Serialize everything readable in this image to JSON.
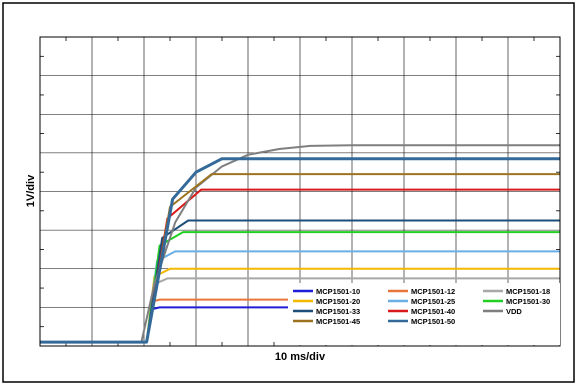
{
  "chart_data": {
    "type": "line",
    "title": "",
    "xlabel": "10 ms/div",
    "ylabel": "1V/div",
    "grid": true,
    "xlim": [
      0,
      10
    ],
    "ylim": [
      0,
      8
    ],
    "legend_placement": "bottom-right",
    "series": [
      {
        "name": "MCP1501-10",
        "color": "#1f1fd6",
        "values_x": [
          0,
          2.05,
          2.15,
          2.3,
          10
        ],
        "values_y": [
          0.1,
          0.1,
          0.95,
          1.0,
          1.0
        ]
      },
      {
        "name": "MCP1501-12",
        "color": "#e8763a",
        "values_x": [
          0,
          2.05,
          2.15,
          2.3,
          10
        ],
        "values_y": [
          0.1,
          0.1,
          1.15,
          1.2,
          1.2
        ]
      },
      {
        "name": "MCP1501-18",
        "color": "#a8a8a8",
        "values_x": [
          0,
          2.05,
          2.2,
          2.45,
          10
        ],
        "values_y": [
          0.1,
          0.1,
          1.6,
          1.75,
          1.75
        ]
      },
      {
        "name": "MCP1501-20",
        "color": "#f5b800",
        "values_x": [
          0,
          2.05,
          2.2,
          2.5,
          10
        ],
        "values_y": [
          0.1,
          0.1,
          1.8,
          2.0,
          2.0
        ]
      },
      {
        "name": "MCP1501-25",
        "color": "#6aaee6",
        "values_x": [
          0,
          2.05,
          2.25,
          2.6,
          10
        ],
        "values_y": [
          0.1,
          0.1,
          2.2,
          2.45,
          2.45
        ]
      },
      {
        "name": "MCP1501-30",
        "color": "#22d022",
        "values_x": [
          0,
          2.05,
          2.3,
          2.75,
          10
        ],
        "values_y": [
          0.1,
          0.1,
          2.6,
          2.95,
          2.95
        ]
      },
      {
        "name": "MCP1501-33",
        "color": "#1e4e7a",
        "values_x": [
          0,
          2.05,
          2.35,
          2.85,
          10
        ],
        "values_y": [
          0.1,
          0.1,
          2.8,
          3.25,
          3.25
        ]
      },
      {
        "name": "MCP1501-40",
        "color": "#d91a1a",
        "values_x": [
          0,
          2.05,
          2.45,
          3.1,
          10
        ],
        "values_y": [
          0.1,
          0.1,
          3.3,
          4.05,
          4.05
        ]
      },
      {
        "name": "VDD",
        "color": "#7f7f7f",
        "values_x": [
          0,
          1.95,
          2.2,
          2.6,
          3.0,
          3.5,
          4.0,
          4.6,
          5.2,
          6.0,
          10
        ],
        "values_y": [
          0.1,
          0.1,
          1.6,
          3.2,
          4.1,
          4.65,
          4.95,
          5.1,
          5.18,
          5.2,
          5.2
        ]
      },
      {
        "name": "MCP1501-45",
        "color": "#9c7420",
        "values_x": [
          0,
          2.05,
          2.5,
          3.3,
          10
        ],
        "values_y": [
          0.1,
          0.1,
          3.6,
          4.45,
          4.45
        ]
      },
      {
        "name": "MCP1501-50",
        "color": "#336a99",
        "values_x": [
          0,
          2.05,
          2.55,
          3.0,
          3.5,
          10
        ],
        "values_y": [
          0.1,
          0.1,
          3.8,
          4.5,
          4.85,
          4.85
        ]
      }
    ]
  }
}
